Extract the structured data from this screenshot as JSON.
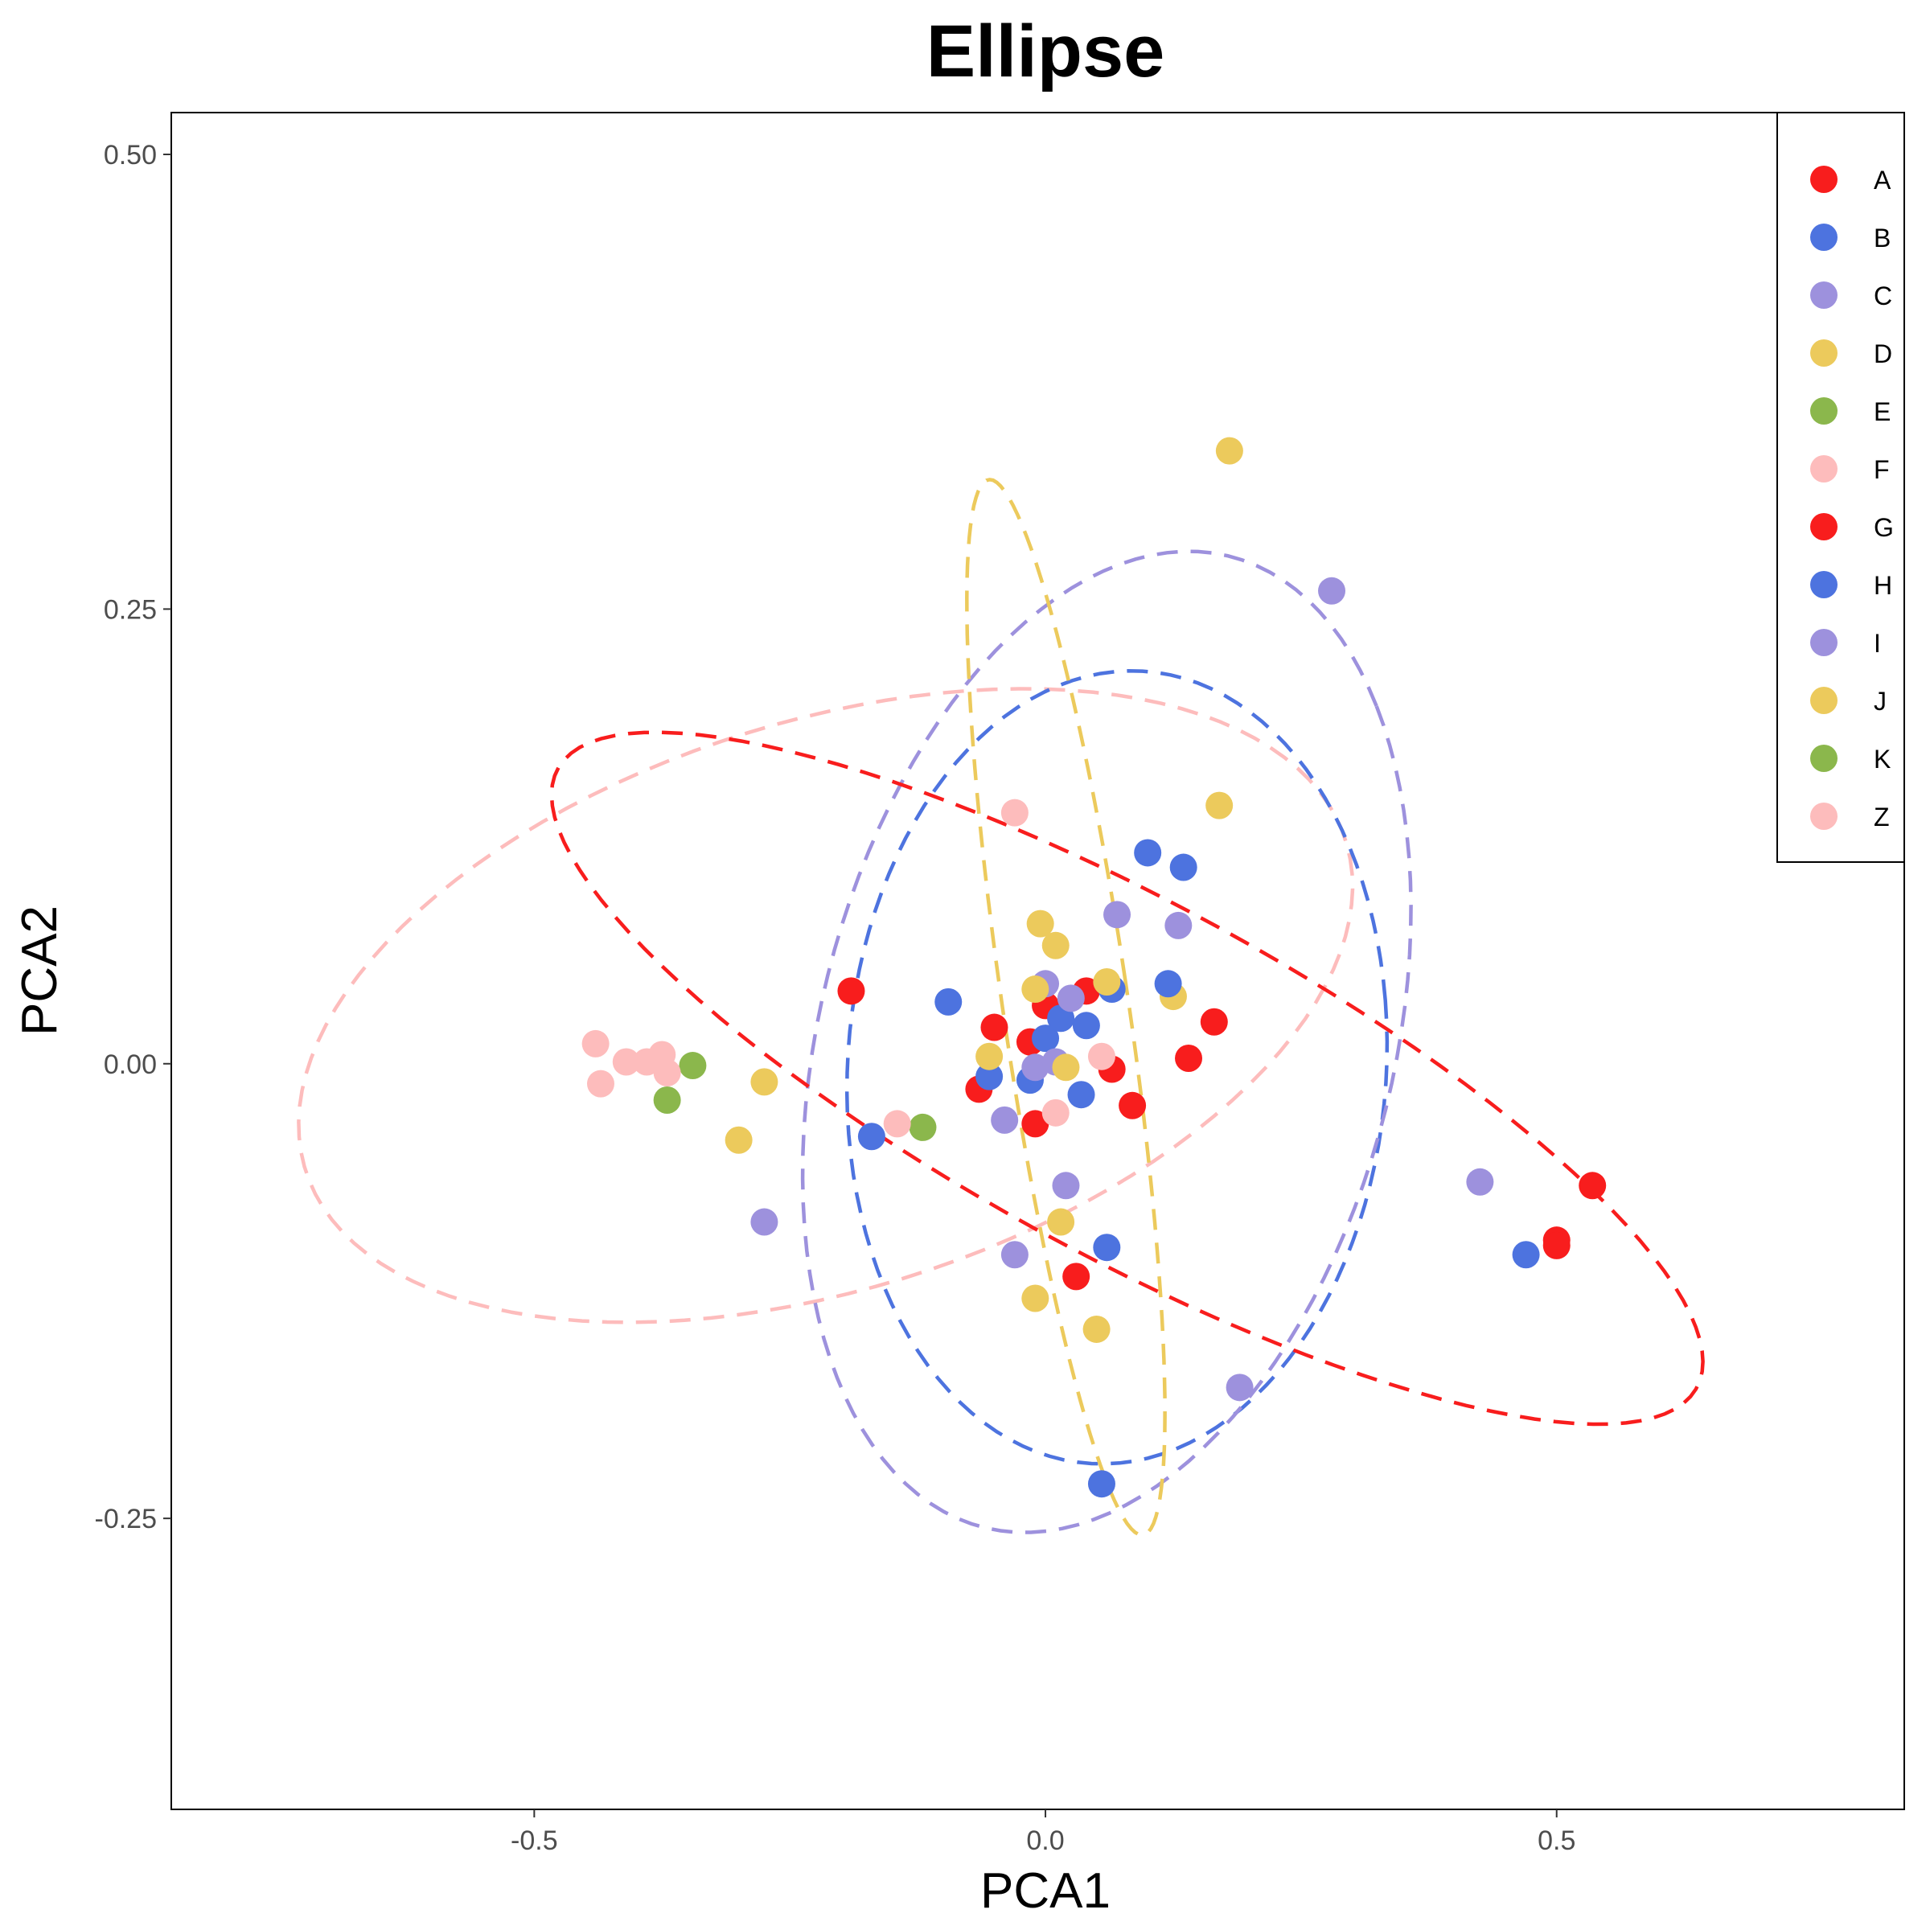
{
  "chart_data": {
    "type": "scatter",
    "title": "Ellipse",
    "xlabel": "PCA1",
    "ylabel": "PCA2",
    "xlim": [
      -0.855,
      0.84
    ],
    "ylim": [
      -0.41,
      0.523
    ],
    "x_ticks": [
      {
        "value": -0.5,
        "label": "-0.5"
      },
      {
        "value": 0.0,
        "label": "0.0"
      },
      {
        "value": 0.5,
        "label": "0.5"
      }
    ],
    "y_ticks": [
      {
        "value": 0.5,
        "label": "0.50"
      },
      {
        "value": 0.25,
        "label": "0.25"
      },
      {
        "value": 0.0,
        "label": "0.00"
      },
      {
        "value": -0.25,
        "label": "-0.25"
      }
    ],
    "grid": false,
    "legend": {
      "position": "top-right",
      "entries": [
        "A",
        "B",
        "C",
        "D",
        "E",
        "F",
        "G",
        "H",
        "I",
        "J",
        "K",
        "Z"
      ]
    },
    "colors": {
      "A": "#f81d1d",
      "B": "#4d73df",
      "C": "#9d91dd",
      "D": "#ecca5c",
      "E": "#8bb74c",
      "F": "#fdbcbc",
      "G": "#f81d1d",
      "H": "#4d73df",
      "I": "#9d91dd",
      "J": "#ecca5c",
      "K": "#8bb74c",
      "Z": "#fdbcbc"
    },
    "series": [
      {
        "name": "A",
        "points": [
          [
            -0.19,
            0.04
          ],
          [
            -0.05,
            0.02
          ],
          [
            -0.015,
            0.012
          ],
          [
            0.0,
            0.032
          ],
          [
            0.04,
            0.04
          ],
          [
            0.065,
            -0.003
          ],
          [
            0.085,
            -0.023
          ],
          [
            0.14,
            0.003
          ],
          [
            0.165,
            0.023
          ],
          [
            -0.065,
            -0.014
          ],
          [
            -0.01,
            -0.033
          ],
          [
            0.03,
            -0.117
          ]
        ]
      },
      {
        "name": "B",
        "points": [
          [
            -0.095,
            0.034
          ],
          [
            -0.055,
            -0.007
          ],
          [
            -0.015,
            -0.009
          ],
          [
            0.0,
            0.014
          ],
          [
            0.015,
            0.025
          ],
          [
            0.04,
            0.021
          ],
          [
            0.065,
            0.041
          ],
          [
            0.035,
            -0.017
          ],
          [
            -0.17,
            -0.04
          ],
          [
            0.06,
            -0.101
          ]
        ]
      },
      {
        "name": "C",
        "points": [
          [
            -0.275,
            -0.087
          ],
          [
            -0.04,
            -0.031
          ],
          [
            -0.01,
            -0.002
          ],
          [
            0.0,
            0.044
          ],
          [
            0.01,
            0.001
          ],
          [
            0.025,
            0.036
          ],
          [
            0.02,
            -0.067
          ],
          [
            -0.03,
            -0.105
          ],
          [
            0.07,
            0.082
          ],
          [
            0.13,
            0.076
          ]
        ]
      },
      {
        "name": "D",
        "points": [
          [
            -0.3,
            -0.042
          ],
          [
            -0.275,
            -0.01
          ],
          [
            -0.055,
            0.004
          ],
          [
            -0.01,
            0.041
          ],
          [
            -0.005,
            0.077
          ],
          [
            0.01,
            0.065
          ],
          [
            0.02,
            -0.002
          ],
          [
            0.06,
            0.045
          ],
          [
            0.125,
            0.037
          ],
          [
            0.17,
            0.142
          ],
          [
            0.015,
            -0.087
          ],
          [
            -0.01,
            -0.129
          ],
          [
            0.05,
            -0.146
          ]
        ]
      },
      {
        "name": "E",
        "points": [
          [
            -0.37,
            -0.02
          ],
          [
            -0.345,
            -0.001
          ],
          [
            -0.12,
            -0.035
          ]
        ]
      },
      {
        "name": "F",
        "points": [
          [
            -0.44,
            0.011
          ],
          [
            -0.435,
            -0.011
          ],
          [
            -0.41,
            0.001
          ],
          [
            -0.39,
            0.001
          ],
          [
            -0.375,
            0.005
          ],
          [
            -0.37,
            -0.005
          ],
          [
            -0.145,
            -0.033
          ],
          [
            0.01,
            -0.027
          ],
          [
            0.055,
            0.004
          ]
        ]
      },
      {
        "name": "G",
        "points": [
          [
            0.5,
            -0.097
          ],
          [
            0.5,
            -0.1
          ],
          [
            0.535,
            -0.067
          ]
        ]
      },
      {
        "name": "H",
        "points": [
          [
            0.47,
            -0.105
          ],
          [
            0.1,
            0.116
          ],
          [
            0.135,
            0.108
          ],
          [
            0.12,
            0.044
          ],
          [
            0.055,
            -0.231
          ]
        ]
      },
      {
        "name": "I",
        "points": [
          [
            0.28,
            0.26
          ],
          [
            0.425,
            -0.065
          ],
          [
            0.19,
            -0.178
          ]
        ]
      },
      {
        "name": "J",
        "points": [
          [
            0.18,
            0.337
          ]
        ]
      },
      {
        "name": "K",
        "points": []
      },
      {
        "name": "Z",
        "points": [
          [
            -0.03,
            0.138
          ]
        ]
      }
    ],
    "ellipses": [
      {
        "group": "Z",
        "color": "#fdbcbc",
        "center": [
          -0.215,
          0.032
        ],
        "rx": 0.52,
        "ry": 0.16,
        "angle_deg": 8
      },
      {
        "group": "H",
        "color": "#4d73df",
        "center": [
          0.07,
          -0.002
        ],
        "rx": 0.265,
        "ry": 0.217,
        "angle_deg": 8
      },
      {
        "group": "I",
        "color": "#9d91dd",
        "center": [
          0.06,
          0.012
        ],
        "rx": 0.322,
        "ry": 0.24,
        "angle_deg": 35
      },
      {
        "group": "J",
        "color": "#ecca5c",
        "center": [
          0.02,
          0.031
        ],
        "rx": 0.06,
        "ry": 0.3,
        "angle_deg": 15
      },
      {
        "group": "G",
        "color": "#f81d1d",
        "center": [
          0.08,
          -0.008
        ],
        "rx": 0.585,
        "ry": 0.105,
        "angle_deg": -16
      }
    ]
  }
}
